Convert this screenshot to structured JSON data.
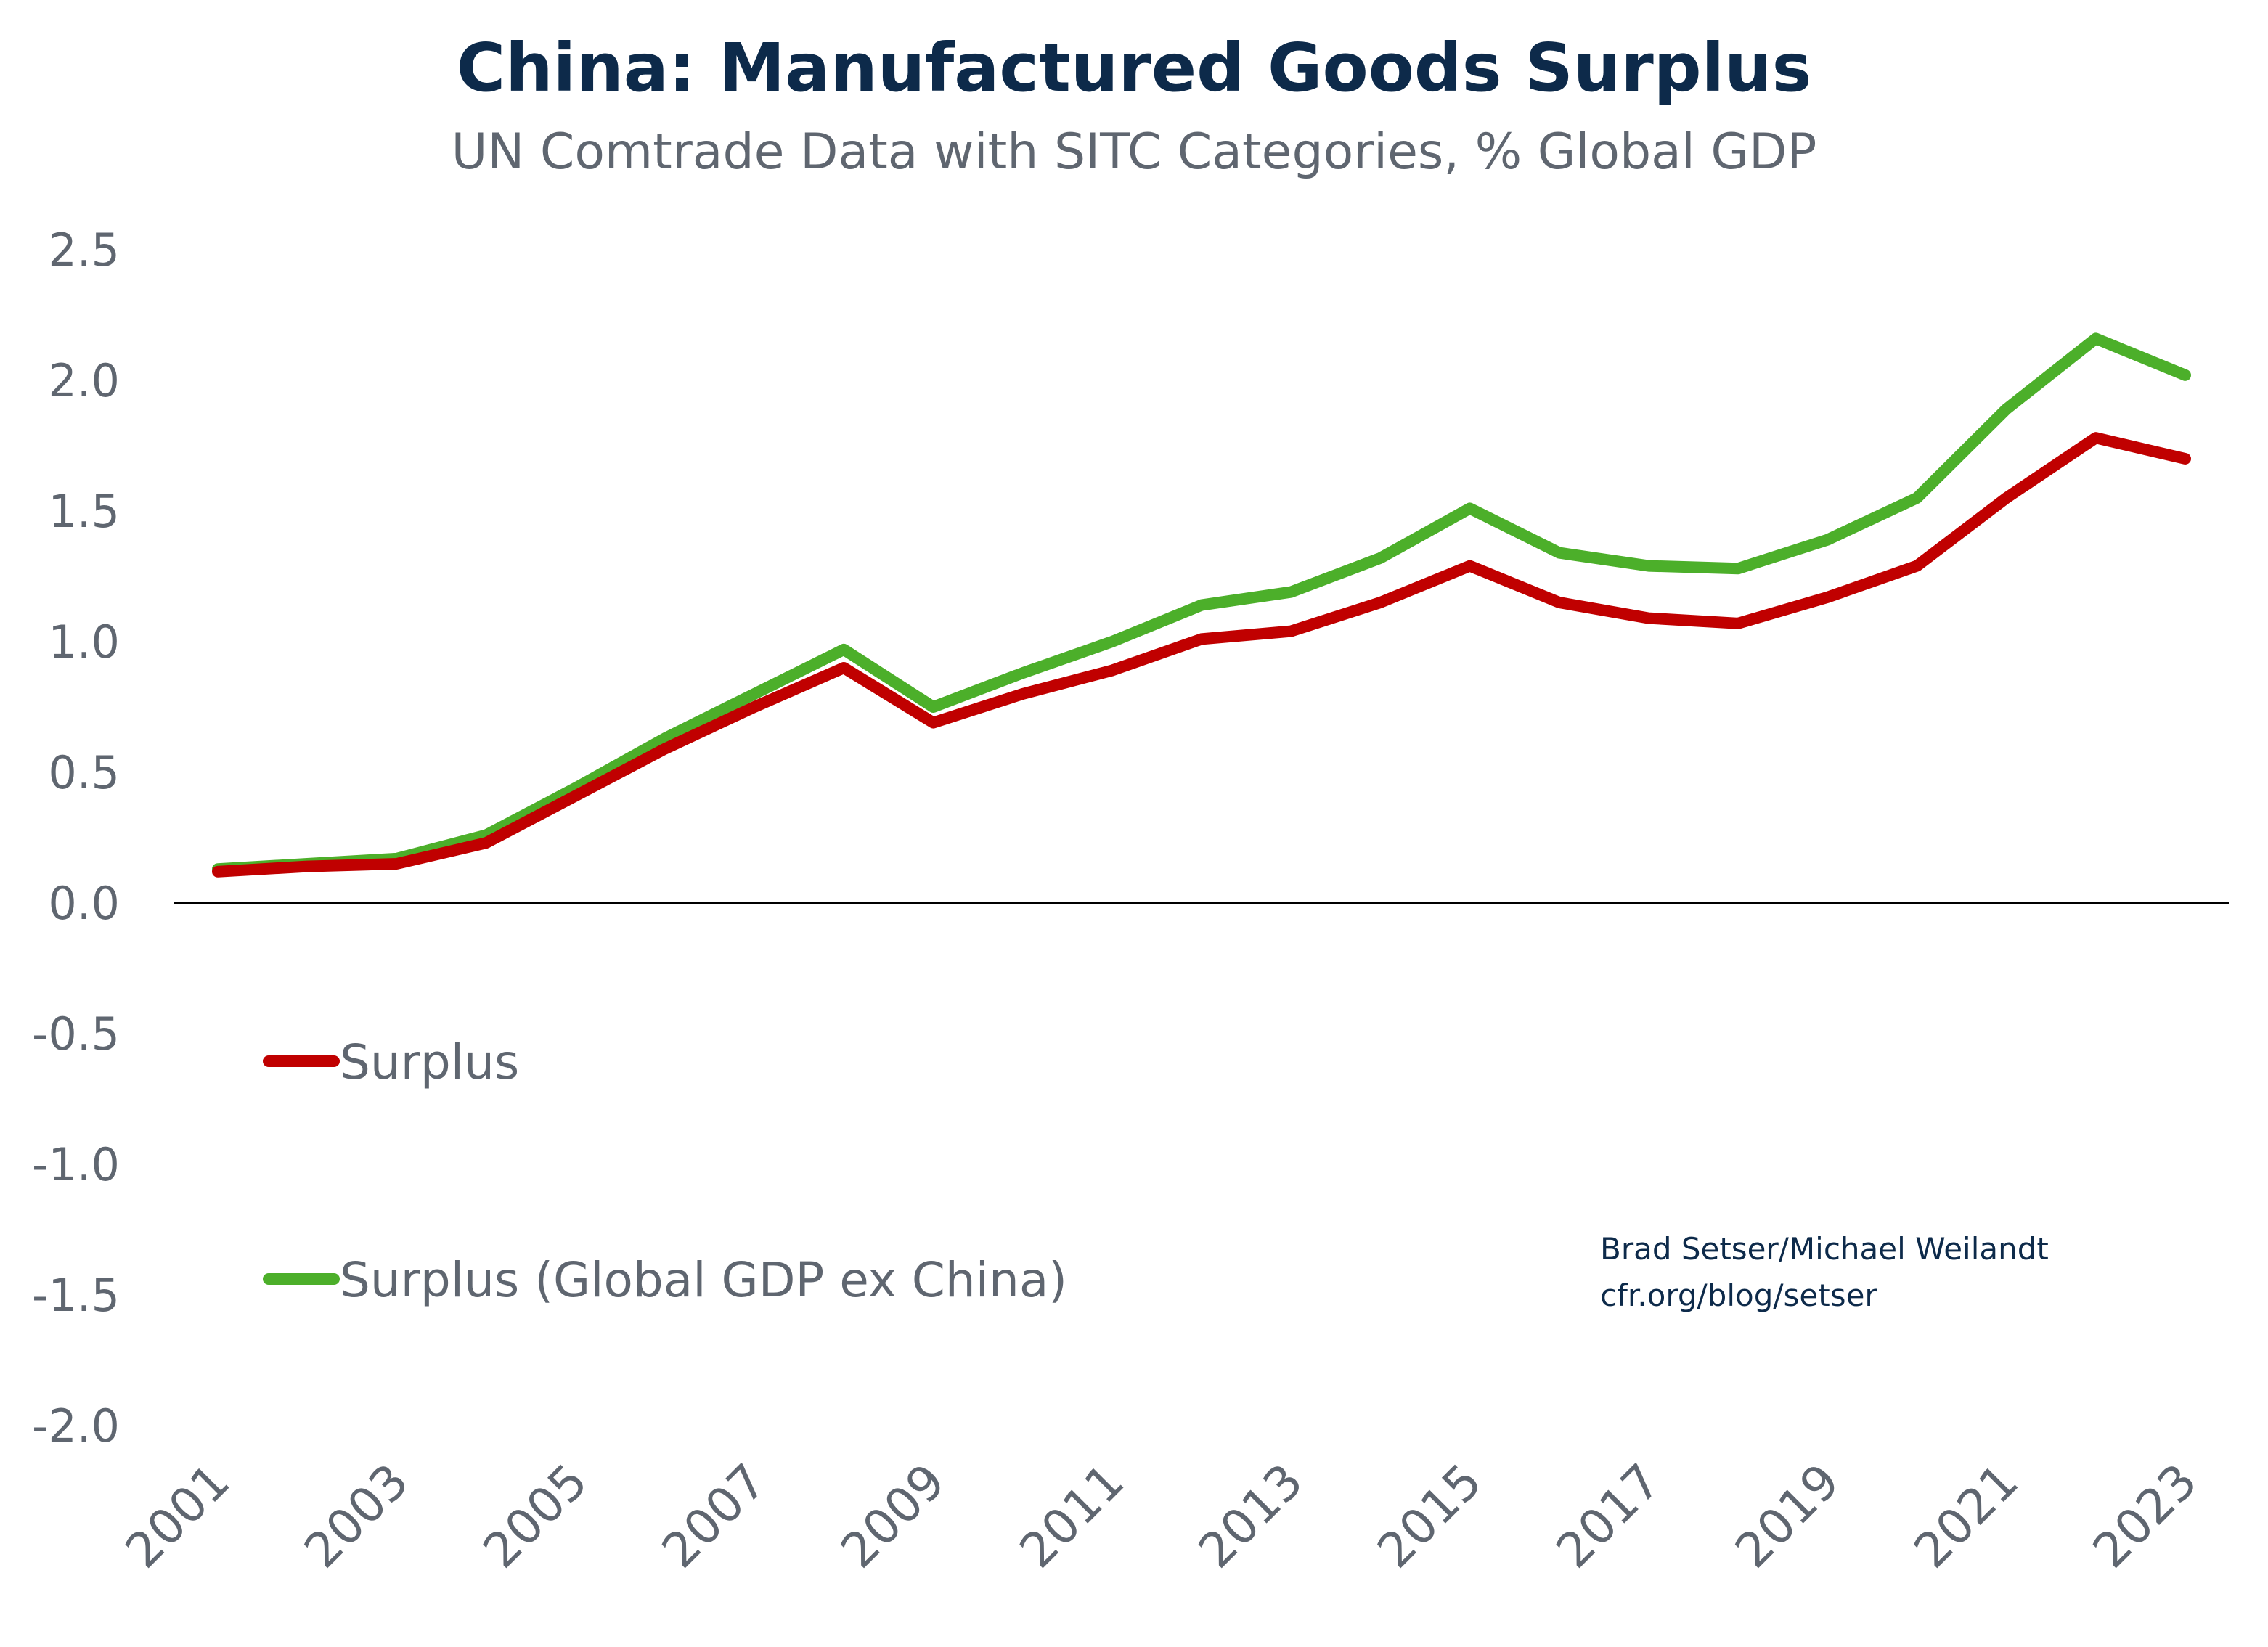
{
  "chart_data": {
    "type": "line",
    "title": "China: Manufactured Goods Surplus",
    "subtitle": "UN Comtrade Data with SITC Categories, % Global GDP",
    "xlabel": "",
    "ylabel": "",
    "x": [
      2001,
      2002,
      2003,
      2004,
      2005,
      2006,
      2007,
      2008,
      2009,
      2010,
      2011,
      2012,
      2013,
      2014,
      2015,
      2016,
      2017,
      2018,
      2019,
      2020,
      2021,
      2022,
      2023
    ],
    "x_tick_labels": [
      "2001",
      "2003",
      "2005",
      "2007",
      "2009",
      "2011",
      "2013",
      "2015",
      "2017",
      "2019",
      "2021",
      "2023"
    ],
    "y_tick_labels": [
      "2.5",
      "2.0",
      "1.5",
      "1.0",
      "0.5",
      "0.0",
      "-0.5",
      "-1.0",
      "-1.5",
      "-2.0"
    ],
    "ylim": [
      -2.0,
      2.5
    ],
    "grid": false,
    "legend_placement": "left-middle",
    "series": [
      {
        "name": "Surplus",
        "color": "#c00000",
        "values": [
          0.12,
          0.14,
          0.15,
          0.23,
          0.41,
          0.59,
          0.75,
          0.9,
          0.69,
          0.8,
          0.89,
          1.01,
          1.04,
          1.15,
          1.29,
          1.15,
          1.09,
          1.07,
          1.17,
          1.29,
          1.55,
          1.78,
          1.7
        ]
      },
      {
        "name": "Surplus (Global GDP ex China)",
        "color": "#4caf2a",
        "values": [
          0.13,
          0.15,
          0.17,
          0.26,
          0.44,
          0.63,
          0.8,
          0.97,
          0.75,
          0.88,
          1.0,
          1.14,
          1.19,
          1.32,
          1.51,
          1.34,
          1.29,
          1.28,
          1.39,
          1.55,
          1.89,
          2.16,
          2.02
        ]
      }
    ],
    "credits": [
      "Brad Setser/Michael Weilandt",
      "cfr.org/blog/setser"
    ]
  }
}
